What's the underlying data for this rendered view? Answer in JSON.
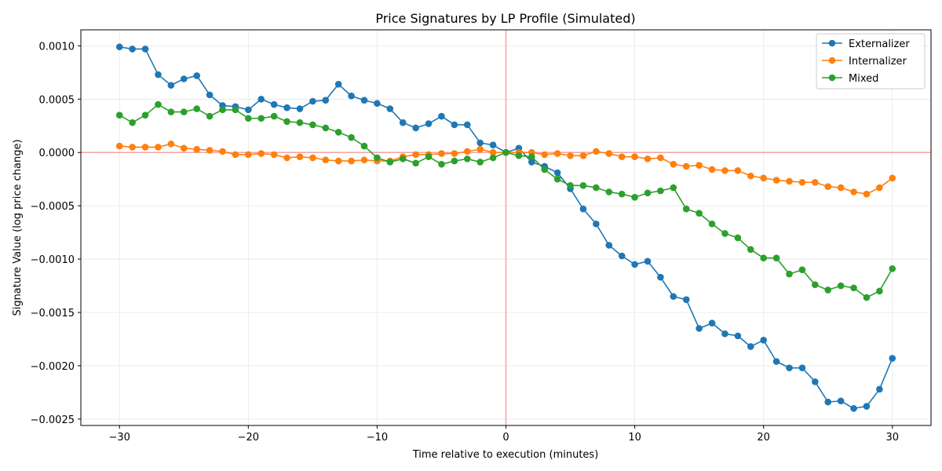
{
  "chart_data": {
    "type": "line",
    "title": "Price Signatures by LP Profile (Simulated)",
    "xlabel": "Time relative to execution (minutes)",
    "ylabel": "Signature Value (log price change)",
    "xlim": [
      -33,
      33
    ],
    "ylim": [
      -0.00256,
      0.00115
    ],
    "xticks": [
      -30,
      -20,
      -10,
      0,
      10,
      20,
      30
    ],
    "xtick_labels": [
      "−30",
      "−20",
      "−10",
      "0",
      "10",
      "20",
      "30"
    ],
    "yticks": [
      -0.0025,
      -0.002,
      -0.0015,
      -0.001,
      -0.0005,
      0.0,
      0.0005,
      0.001
    ],
    "ytick_labels": [
      "−0.0025",
      "−0.0020",
      "−0.0015",
      "−0.0010",
      "−0.0005",
      "0.0000",
      "0.0005",
      "0.0010"
    ],
    "grid": true,
    "legend_position": "top-right",
    "reference_lines": {
      "x": 0,
      "y": 0,
      "color": "#f4a3a3"
    },
    "x": [
      -30,
      -29,
      -28,
      -27,
      -26,
      -25,
      -24,
      -23,
      -22,
      -21,
      -20,
      -19,
      -18,
      -17,
      -16,
      -15,
      -14,
      -13,
      -12,
      -11,
      -10,
      -9,
      -8,
      -7,
      -6,
      -5,
      -4,
      -3,
      -2,
      -1,
      0,
      1,
      2,
      3,
      4,
      5,
      6,
      7,
      8,
      9,
      10,
      11,
      12,
      13,
      14,
      15,
      16,
      17,
      18,
      19,
      20,
      21,
      22,
      23,
      24,
      25,
      26,
      27,
      28,
      29,
      30
    ],
    "series": [
      {
        "name": "Externalizer",
        "color": "#1f77b4",
        "values": [
          0.00099,
          0.00097,
          0.00097,
          0.00073,
          0.00063,
          0.00069,
          0.00072,
          0.00054,
          0.00044,
          0.00043,
          0.0004,
          0.0005,
          0.00045,
          0.00042,
          0.00041,
          0.00048,
          0.00049,
          0.00064,
          0.00053,
          0.00049,
          0.00046,
          0.00041,
          0.00028,
          0.00023,
          0.00027,
          0.00034,
          0.00026,
          0.00026,
          9e-05,
          7e-05,
          0.0,
          4e-05,
          -9e-05,
          -0.00013,
          -0.00019,
          -0.00034,
          -0.00053,
          -0.00067,
          -0.00087,
          -0.00097,
          -0.00105,
          -0.00102,
          -0.00117,
          -0.00135,
          -0.00138,
          -0.00165,
          -0.0016,
          -0.0017,
          -0.00172,
          -0.00182,
          -0.00176,
          -0.00196,
          -0.00202,
          -0.00202,
          -0.00215,
          -0.00234,
          -0.00233,
          -0.0024,
          -0.00238,
          -0.00222,
          -0.00193
        ]
      },
      {
        "name": "Internalizer",
        "color": "#ff7f0e",
        "values": [
          6e-05,
          5e-05,
          5e-05,
          5e-05,
          8e-05,
          4e-05,
          3e-05,
          2e-05,
          1e-05,
          -2e-05,
          -2e-05,
          -1e-05,
          -2e-05,
          -5e-05,
          -4e-05,
          -5e-05,
          -7e-05,
          -8e-05,
          -8e-05,
          -7e-05,
          -8e-05,
          -8e-05,
          -4e-05,
          -2e-05,
          -2e-05,
          -1e-05,
          -1e-05,
          1e-05,
          3e-05,
          0.0,
          0.0,
          0.0,
          0.0,
          -2e-05,
          -1e-05,
          -3e-05,
          -3e-05,
          1e-05,
          -1e-05,
          -4e-05,
          -4e-05,
          -6e-05,
          -5e-05,
          -0.00011,
          -0.00013,
          -0.00012,
          -0.00016,
          -0.00017,
          -0.00017,
          -0.00022,
          -0.00024,
          -0.00026,
          -0.00027,
          -0.00028,
          -0.00028,
          -0.00032,
          -0.00033,
          -0.00037,
          -0.00039,
          -0.00033,
          -0.00024
        ]
      },
      {
        "name": "Mixed",
        "color": "#2ca02c",
        "values": [
          0.00035,
          0.00028,
          0.00035,
          0.00045,
          0.00038,
          0.00038,
          0.00041,
          0.00034,
          0.0004,
          0.0004,
          0.00032,
          0.00032,
          0.00034,
          0.00029,
          0.00028,
          0.00026,
          0.00023,
          0.00019,
          0.00014,
          6e-05,
          -5e-05,
          -9e-05,
          -6e-05,
          -0.0001,
          -4e-05,
          -0.00011,
          -8e-05,
          -6e-05,
          -9e-05,
          -5e-05,
          0.0,
          -3e-05,
          -4e-05,
          -0.00016,
          -0.00025,
          -0.00031,
          -0.00031,
          -0.00033,
          -0.00037,
          -0.00039,
          -0.00042,
          -0.00038,
          -0.00036,
          -0.00033,
          -0.00053,
          -0.00057,
          -0.00067,
          -0.00076,
          -0.0008,
          -0.00091,
          -0.00099,
          -0.00099,
          -0.00114,
          -0.0011,
          -0.00124,
          -0.00129,
          -0.00125,
          -0.00127,
          -0.00136,
          -0.0013,
          -0.00109
        ]
      }
    ]
  }
}
